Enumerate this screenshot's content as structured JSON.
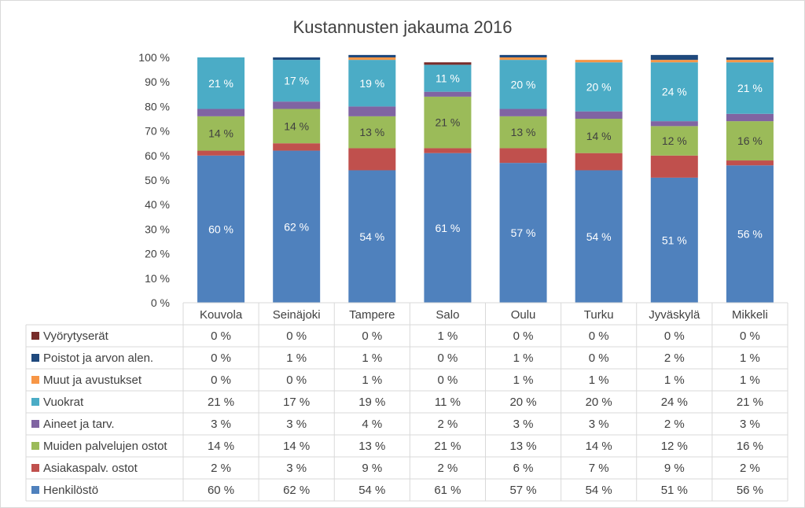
{
  "chart_data": {
    "type": "bar",
    "stacked": true,
    "title": "Kustannusten jakauma 2016",
    "categories": [
      "Kouvola",
      "Seinäjoki",
      "Tampere",
      "Salo",
      "Oulu",
      "Turku",
      "Jyväskylä",
      "Mikkeli"
    ],
    "ylim": [
      0,
      100
    ],
    "yticks": [
      "0 %",
      "10 %",
      "20 %",
      "30 %",
      "40 %",
      "50 %",
      "60 %",
      "70 %",
      "80 %",
      "90 %",
      "100 %"
    ],
    "grid": false,
    "legend": "data-table-below",
    "series": [
      {
        "name": "Henkilöstö",
        "color": "#4f81bd",
        "values": [
          60,
          62,
          54,
          61,
          57,
          54,
          51,
          56
        ],
        "labels": [
          "60 %",
          "62 %",
          "54 %",
          "61 %",
          "57 %",
          "54 %",
          "51 %",
          "56 %"
        ],
        "show_labels": true
      },
      {
        "name": "Asiakaspalv. ostot",
        "color": "#c0504d",
        "values": [
          2,
          3,
          9,
          2,
          6,
          7,
          9,
          2
        ],
        "labels": [
          "2 %",
          "3 %",
          "9 %",
          "2 %",
          "6 %",
          "7 %",
          "9 %",
          "2 %"
        ],
        "show_labels": false
      },
      {
        "name": "Muiden palvelujen ostot",
        "color": "#9bbb59",
        "values": [
          14,
          14,
          13,
          21,
          13,
          14,
          12,
          16
        ],
        "labels": [
          "14 %",
          "14 %",
          "13 %",
          "21 %",
          "13 %",
          "14 %",
          "12 %",
          "16 %"
        ],
        "show_labels": true
      },
      {
        "name": "Aineet ja tarv.",
        "color": "#8064a2",
        "values": [
          3,
          3,
          4,
          2,
          3,
          3,
          2,
          3
        ],
        "labels": [
          "3 %",
          "3 %",
          "4 %",
          "2 %",
          "3 %",
          "3 %",
          "2 %",
          "3 %"
        ],
        "show_labels": false
      },
      {
        "name": "Vuokrat",
        "color": "#4bacc6",
        "values": [
          21,
          17,
          19,
          11,
          20,
          20,
          24,
          21
        ],
        "labels": [
          "21 %",
          "17 %",
          "19 %",
          "11 %",
          "20 %",
          "20 %",
          "24 %",
          "21 %"
        ],
        "show_labels": true
      },
      {
        "name": "Muut ja avustukset",
        "color": "#f79646",
        "values": [
          0,
          0,
          1,
          0,
          1,
          1,
          1,
          1
        ],
        "labels": [
          "0 %",
          "0 %",
          "1 %",
          "0 %",
          "1 %",
          "1 %",
          "1 %",
          "1 %"
        ],
        "show_labels": false
      },
      {
        "name": "Poistot ja arvon alen.",
        "color": "#1f497d",
        "values": [
          0,
          1,
          1,
          0,
          1,
          0,
          2,
          1
        ],
        "labels": [
          "0 %",
          "1 %",
          "1 %",
          "0 %",
          "1 %",
          "0 %",
          "2 %",
          "1 %"
        ],
        "show_labels": false
      },
      {
        "name": "Vyörytyserät",
        "color": "#772c2a",
        "values": [
          0,
          0,
          0,
          1,
          0,
          0,
          0,
          0
        ],
        "labels": [
          "0 %",
          "0 %",
          "0 %",
          "1 %",
          "0 %",
          "0 %",
          "0 %",
          "0 %"
        ],
        "show_labels": false
      }
    ]
  }
}
